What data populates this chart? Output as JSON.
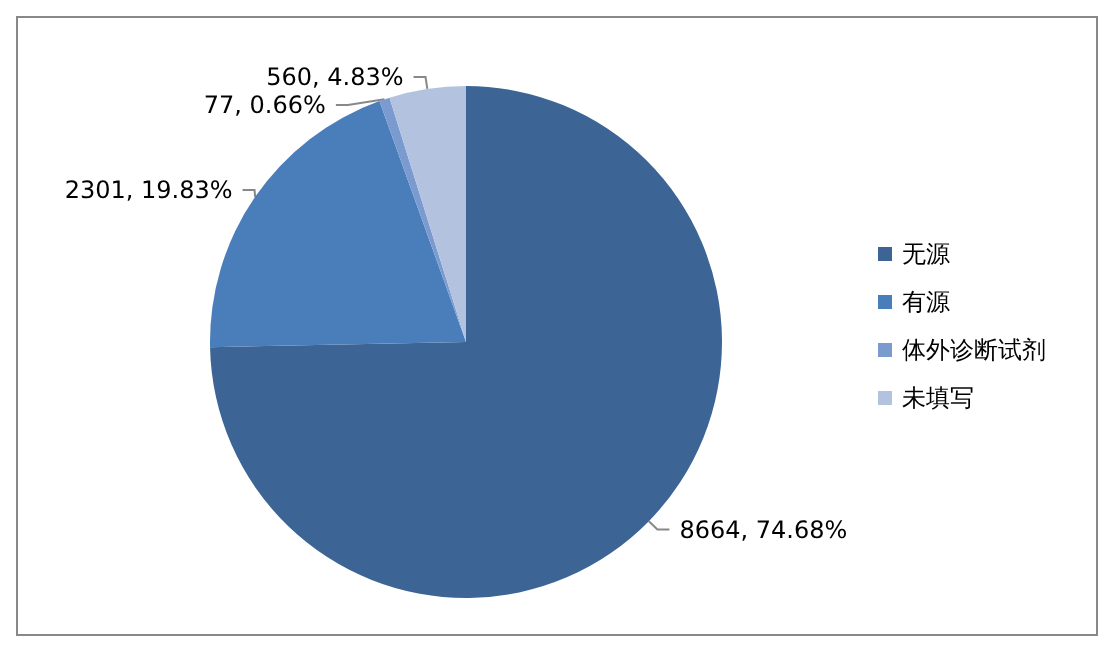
{
  "chart_data": {
    "type": "pie",
    "categories": [
      "无源",
      "有源",
      "体外诊断试剂",
      "未填写"
    ],
    "values": [
      8664,
      2301,
      77,
      560
    ],
    "colors": [
      "#3c6494",
      "#4a7ebb",
      "#7b9bd0",
      "#b3c3df"
    ],
    "value_labels": [
      "8664, 74.68%",
      "2301, 19.83%",
      "77, 0.66%",
      "560, 4.83%"
    ],
    "legend": "right"
  }
}
